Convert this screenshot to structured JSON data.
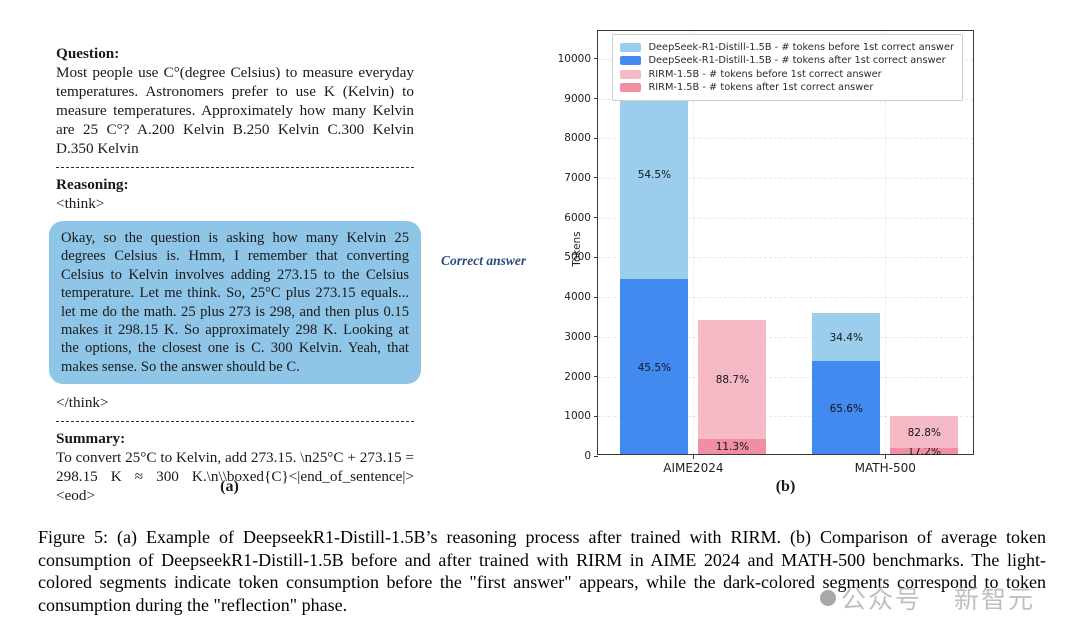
{
  "panel_a": {
    "question_heading": "Question:",
    "question_text": "Most people use C°(degree Celsius) to measure everyday temperatures. Astronomers prefer to use K (Kelvin) to measure temperatures. Approximately how many Kelvin are 25 C°? A.200 Kelvin  B.250 Kelvin  C.300 Kelvin  D.350 Kelvin",
    "reasoning_heading": "Reasoning:",
    "think_open_tag": "<think>",
    "think_text": "Okay, so the question is asking how many Kelvin 25 degrees Celsius is. Hmm, I remember that converting Celsius to Kelvin involves adding 273.15 to the Celsius temperature. Let me think. So, 25°C plus 273.15 equals... let me do the math. 25 plus 273 is 298, and then plus 0.15 makes it 298.15 K. So approximately 298 K. Looking at the options, the closest one is C. 300 Kelvin. Yeah, that makes sense. So the answer should be C.",
    "think_close_tag": "</think>",
    "summary_heading": "Summary:",
    "summary_text": "To convert 25°C to Kelvin, add 273.15. \\n25°C + 273.15 = 298.15 K ≈ 300 K.\\n\\\\boxed{C}<|end_of_sentence|><eod>",
    "label": "(a)",
    "think_box_color": "#8FC5E7"
  },
  "annotation": {
    "correct_answer_label": "Correct answer",
    "color": "#2A4A7F"
  },
  "panel_b": {
    "label": "(b)"
  },
  "chart_data": {
    "type": "bar",
    "stacked": true,
    "title": "",
    "xlabel": "",
    "ylabel": "Tokens",
    "ylim": [
      0,
      10700
    ],
    "yticks": [
      0,
      1000,
      2000,
      3000,
      4000,
      5000,
      6000,
      7000,
      8000,
      9000,
      10000
    ],
    "grid": "dashed-light",
    "legend_position": "upper-right-inside",
    "categories": [
      "AIME2024",
      "MATH-500"
    ],
    "colors": {
      "deepseek_before": "#9BCDEC",
      "deepseek_after": "#4289F0",
      "rirm_before": "#F5BAC6",
      "rirm_after": "#F08EA2"
    },
    "legend": [
      {
        "label": "DeepSeek-R1-Distill-1.5B - # tokens before 1st correct answer",
        "color": "#9BCDEC"
      },
      {
        "label": "DeepSeek-R1-Distill-1.5B - # tokens after 1st correct answer",
        "color": "#4289F0"
      },
      {
        "label": "RIRM-1.5B - # tokens before 1st correct answer",
        "color": "#F5BAC6"
      },
      {
        "label": "RIRM-1.5B - # tokens after 1st correct answer",
        "color": "#F08EA2"
      }
    ],
    "bars": [
      {
        "category": "AIME2024",
        "model": "DeepSeek-R1-Distill-1.5B",
        "total_tokens": 9700,
        "segments": [
          {
            "meaning": "tokens after 1st correct answer",
            "value": 4400,
            "pct_label": "45.5%",
            "color": "#4289F0"
          },
          {
            "meaning": "tokens before 1st correct answer",
            "value": 5300,
            "pct_label": "54.5%",
            "color": "#9BCDEC"
          }
        ]
      },
      {
        "category": "AIME2024",
        "model": "RIRM-1.5B",
        "total_tokens": 3380,
        "segments": [
          {
            "meaning": "tokens after 1st correct answer",
            "value": 382,
            "pct_label": "11.3%",
            "color": "#F08EA2"
          },
          {
            "meaning": "tokens before 1st correct answer",
            "value": 2998,
            "pct_label": "88.7%",
            "color": "#F5BAC6"
          }
        ]
      },
      {
        "category": "MATH-500",
        "model": "DeepSeek-R1-Distill-1.5B",
        "total_tokens": 3550,
        "segments": [
          {
            "meaning": "tokens after 1st correct answer",
            "value": 2330,
            "pct_label": "65.6%",
            "color": "#4289F0"
          },
          {
            "meaning": "tokens before 1st correct answer",
            "value": 1220,
            "pct_label": "34.4%",
            "color": "#9BCDEC"
          }
        ]
      },
      {
        "category": "MATH-500",
        "model": "RIRM-1.5B",
        "total_tokens": 950,
        "segments": [
          {
            "meaning": "tokens after 1st correct answer",
            "value": 163,
            "pct_label": "17.2%",
            "color": "#F08EA2"
          },
          {
            "meaning": "tokens before 1st correct answer",
            "value": 787,
            "pct_label": "82.8%",
            "color": "#F5BAC6"
          }
        ]
      }
    ]
  },
  "caption": "Figure 5: (a) Example of DeepseekR1-Distill-1.5B’s reasoning process after trained with RIRM. (b) Comparison of average token consumption of DeepseekR1-Distill-1.5B before and after trained with RIRM in AIME 2024 and MATH-500 benchmarks. The light-colored segments indicate token consumption before the \"first answer\" appears, while the dark-colored segments correspond to token consumption during the \"reflection\" phase.",
  "watermark": {
    "text_left": "公众号",
    "text_right": "新智元"
  }
}
